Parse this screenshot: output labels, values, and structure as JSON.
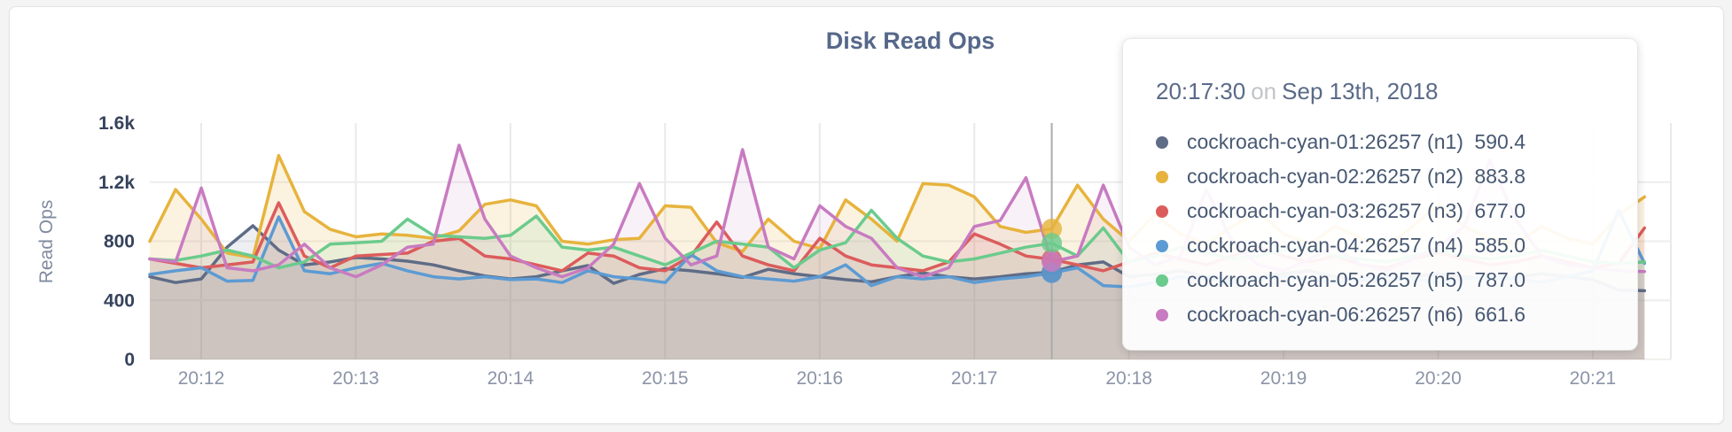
{
  "chart_data": {
    "type": "line",
    "title": "Disk Read Ops",
    "xlabel": "",
    "ylabel": "Read Ops",
    "ylim": [
      0,
      1600
    ],
    "y_ticks": [
      0,
      400,
      800,
      1200,
      1600
    ],
    "y_tick_labels": [
      "0",
      "400",
      "800",
      "1.2k",
      "1.6k"
    ],
    "y_gridlines": [
      400,
      800,
      1200
    ],
    "x_ticks": [
      "20:12",
      "20:13",
      "20:14",
      "20:15",
      "20:16",
      "20:17",
      "20:18",
      "20:19",
      "20:20",
      "20:21"
    ],
    "x_start": "20:11:40",
    "x_interval_seconds": 10,
    "x_end": "20:21:20",
    "grid": true,
    "area_fill": true,
    "legend_position": "none",
    "hover": {
      "time": "20:17:30",
      "index": 35
    },
    "series": [
      {
        "name": "cockroach-cyan-01:26257 (n1)",
        "node": "n1",
        "color": "#5F6C87",
        "fill_opacity": 0.11,
        "values": [
          560,
          520,
          545,
          760,
          905,
          740,
          640,
          660,
          690,
          680,
          665,
          640,
          600,
          565,
          545,
          560,
          600,
          635,
          515,
          575,
          615,
          600,
          580,
          555,
          610,
          580,
          560,
          540,
          525,
          560,
          585,
          560,
          545,
          560,
          580,
          590.4,
          640,
          660,
          560,
          575,
          600,
          560,
          540,
          555,
          580,
          600,
          560,
          540,
          525,
          560,
          580,
          560,
          545,
          555,
          580,
          560,
          540,
          470,
          465
        ]
      },
      {
        "name": "cockroach-cyan-02:26257 (n2)",
        "node": "n2",
        "color": "#E7B33D",
        "fill_opacity": 0.16,
        "values": [
          800,
          1150,
          950,
          720,
          690,
          1380,
          1000,
          880,
          830,
          850,
          840,
          820,
          870,
          1050,
          1080,
          1040,
          800,
          780,
          810,
          820,
          1040,
          1030,
          790,
          730,
          950,
          800,
          750,
          1080,
          950,
          800,
          1190,
          1180,
          1100,
          900,
          860,
          883.8,
          1180,
          950,
          800,
          980,
          850,
          780,
          900,
          1000,
          850,
          780,
          900,
          820,
          760,
          900,
          1050,
          900,
          820,
          780,
          900,
          820,
          780,
          980,
          1100
        ]
      },
      {
        "name": "cockroach-cyan-03:26257 (n3)",
        "node": "n3",
        "color": "#DC5C5C",
        "fill_opacity": 0.11,
        "values": [
          680,
          650,
          620,
          640,
          660,
          1060,
          700,
          620,
          700,
          710,
          720,
          800,
          820,
          700,
          680,
          640,
          600,
          720,
          700,
          620,
          600,
          700,
          930,
          700,
          640,
          600,
          820,
          700,
          640,
          620,
          600,
          660,
          850,
          780,
          700,
          677,
          640,
          600,
          660,
          720,
          680,
          640,
          700,
          760,
          700,
          660,
          700,
          640,
          620,
          680,
          720,
          680,
          640,
          660,
          700,
          660,
          620,
          650,
          890
        ]
      },
      {
        "name": "cockroach-cyan-04:26257 (n4)",
        "node": "n4",
        "color": "#5C9BD3",
        "fill_opacity": 0.11,
        "values": [
          575,
          600,
          620,
          530,
          535,
          965,
          600,
          580,
          620,
          650,
          600,
          560,
          545,
          560,
          540,
          545,
          520,
          600,
          560,
          545,
          520,
          710,
          600,
          560,
          545,
          530,
          560,
          640,
          500,
          560,
          545,
          560,
          520,
          545,
          560,
          585,
          620,
          500,
          490,
          520,
          560,
          545,
          520,
          545,
          560,
          540,
          520,
          545,
          560,
          545,
          520,
          545,
          560,
          545,
          520,
          560,
          600,
          1010,
          650
        ]
      },
      {
        "name": "cockroach-cyan-05:26257 (n5)",
        "node": "n5",
        "color": "#6BCB8C",
        "fill_opacity": 0.11,
        "values": [
          680,
          670,
          700,
          740,
          700,
          620,
          660,
          780,
          790,
          800,
          950,
          840,
          830,
          820,
          840,
          970,
          760,
          740,
          760,
          700,
          640,
          720,
          800,
          780,
          760,
          620,
          740,
          790,
          1010,
          820,
          700,
          660,
          680,
          720,
          760,
          787,
          700,
          890,
          660,
          700,
          760,
          720,
          680,
          700,
          740,
          760,
          700,
          680,
          660,
          700,
          740,
          700,
          680,
          700,
          740,
          700,
          660,
          650,
          660
        ]
      },
      {
        "name": "cockroach-cyan-06:26257 (n6)",
        "node": "n6",
        "color": "#C87BC1",
        "fill_opacity": 0.11,
        "values": [
          680,
          660,
          1160,
          620,
          600,
          640,
          780,
          620,
          560,
          640,
          760,
          780,
          1450,
          950,
          700,
          620,
          560,
          620,
          780,
          1190,
          820,
          640,
          700,
          1420,
          760,
          680,
          1040,
          900,
          820,
          620,
          560,
          620,
          900,
          940,
          1230,
          661.6,
          700,
          1180,
          760,
          640,
          700,
          1150,
          800,
          640,
          600,
          680,
          760,
          640,
          600,
          680,
          760,
          900,
          1350,
          950,
          700,
          640,
          620,
          600,
          595
        ]
      }
    ]
  },
  "chart": {
    "title": "Disk Read Ops",
    "ylabel": "Read Ops"
  },
  "tooltip": {
    "time": "20:17:30",
    "conj": "on",
    "date": "Sep 13th, 2018",
    "rows": [
      {
        "label": "cockroach-cyan-01:26257 (n1)",
        "value": "590.4",
        "color": "#5F6C87"
      },
      {
        "label": "cockroach-cyan-02:26257 (n2)",
        "value": "883.8",
        "color": "#E7B33D"
      },
      {
        "label": "cockroach-cyan-03:26257 (n3)",
        "value": "677.0",
        "color": "#DC5C5C"
      },
      {
        "label": "cockroach-cyan-04:26257 (n4)",
        "value": "585.0",
        "color": "#5C9BD3"
      },
      {
        "label": "cockroach-cyan-05:26257 (n5)",
        "value": "787.0",
        "color": "#6BCB8C"
      },
      {
        "label": "cockroach-cyan-06:26257 (n6)",
        "value": "661.6",
        "color": "#C87BC1"
      }
    ]
  }
}
